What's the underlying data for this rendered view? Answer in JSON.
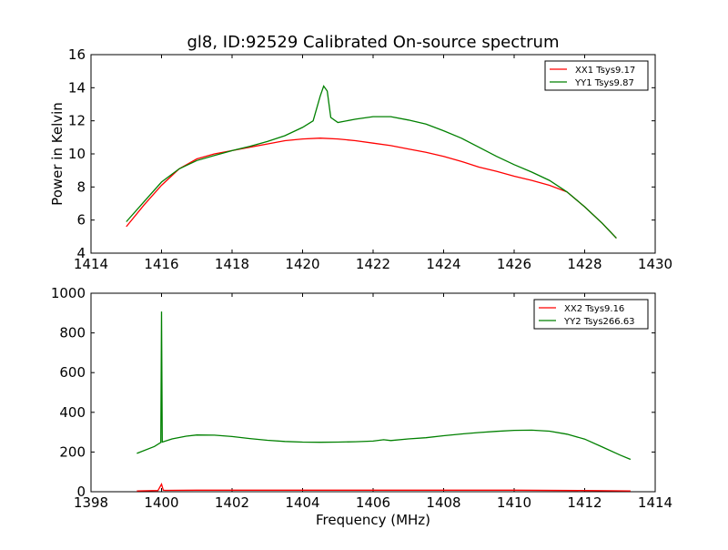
{
  "chart_data": [
    {
      "type": "line",
      "title": "gl8, ID:92529 Calibrated On-source spectrum",
      "xlabel": "",
      "ylabel": "Power in Kelvin",
      "xlim": [
        1414,
        1430
      ],
      "ylim": [
        4,
        16
      ],
      "xticks": [
        "1414",
        "1416",
        "1418",
        "1420",
        "1422",
        "1424",
        "1426",
        "1428",
        "1430"
      ],
      "yticks": [
        "4",
        "6",
        "8",
        "10",
        "12",
        "14",
        "16"
      ],
      "legend_position": "top-right",
      "series": [
        {
          "name": "XX1 Tsys9.17",
          "color": "#ff0000",
          "x": [
            1415.0,
            1415.5,
            1416.0,
            1416.5,
            1417.0,
            1417.5,
            1418.0,
            1418.5,
            1419.0,
            1419.5,
            1420.0,
            1420.5,
            1421.0,
            1421.5,
            1422.0,
            1422.5,
            1423.0,
            1423.5,
            1424.0,
            1424.5,
            1425.0,
            1425.5,
            1426.0,
            1426.5,
            1427.0,
            1427.5,
            1428.0,
            1428.5,
            1428.9
          ],
          "y": [
            5.6,
            6.9,
            8.1,
            9.1,
            9.7,
            10.0,
            10.2,
            10.4,
            10.6,
            10.8,
            10.9,
            10.95,
            10.9,
            10.8,
            10.65,
            10.5,
            10.3,
            10.1,
            9.85,
            9.55,
            9.2,
            8.95,
            8.65,
            8.4,
            8.1,
            7.7,
            6.8,
            5.8,
            4.9
          ]
        },
        {
          "name": "YY1 Tsys9.87",
          "color": "#008000",
          "x": [
            1415.0,
            1415.5,
            1416.0,
            1416.5,
            1417.0,
            1417.5,
            1418.0,
            1418.5,
            1419.0,
            1419.5,
            1420.0,
            1420.3,
            1420.5,
            1420.6,
            1420.7,
            1420.8,
            1421.0,
            1421.5,
            1422.0,
            1422.5,
            1423.0,
            1423.5,
            1424.0,
            1424.5,
            1425.0,
            1425.5,
            1426.0,
            1426.5,
            1427.0,
            1427.5,
            1428.0,
            1428.5,
            1428.9
          ],
          "y": [
            5.9,
            7.1,
            8.3,
            9.1,
            9.6,
            9.9,
            10.2,
            10.45,
            10.75,
            11.1,
            11.6,
            12.0,
            13.5,
            14.1,
            13.8,
            12.2,
            11.9,
            12.1,
            12.25,
            12.25,
            12.05,
            11.8,
            11.4,
            10.95,
            10.4,
            9.85,
            9.35,
            8.9,
            8.4,
            7.7,
            6.8,
            5.8,
            4.9
          ]
        }
      ]
    },
    {
      "type": "line",
      "title": "",
      "xlabel": "Frequency (MHz)",
      "ylabel": "",
      "xlim": [
        1398,
        1414
      ],
      "ylim": [
        0,
        1000
      ],
      "xticks": [
        "1398",
        "1400",
        "1402",
        "1404",
        "1406",
        "1408",
        "1410",
        "1412",
        "1414"
      ],
      "yticks": [
        "0",
        "200",
        "400",
        "600",
        "800",
        "1000"
      ],
      "legend_position": "top-right",
      "series": [
        {
          "name": "XX2 Tsys9.16",
          "color": "#ff0000",
          "x": [
            1399.3,
            1399.9,
            1400.0,
            1400.05,
            1400.1,
            1401.0,
            1402.0,
            1404.0,
            1406.0,
            1408.0,
            1410.0,
            1412.0,
            1413.3
          ],
          "y": [
            4,
            6,
            38,
            8,
            7,
            8,
            8,
            8,
            8,
            8,
            8,
            6,
            4
          ]
        },
        {
          "name": "YY2 Tsys266.63",
          "color": "#008000",
          "x": [
            1399.3,
            1399.8,
            1399.98,
            1400.0,
            1400.02,
            1400.3,
            1400.7,
            1401.0,
            1401.5,
            1402.0,
            1402.5,
            1403.0,
            1403.5,
            1404.0,
            1404.5,
            1405.0,
            1405.5,
            1406.0,
            1406.3,
            1406.5,
            1407.0,
            1407.5,
            1408.0,
            1408.5,
            1409.0,
            1409.5,
            1410.0,
            1410.5,
            1411.0,
            1411.5,
            1412.0,
            1412.5,
            1413.0,
            1413.3
          ],
          "y": [
            193,
            228,
            248,
            908,
            250,
            266,
            280,
            286,
            285,
            278,
            268,
            259,
            253,
            250,
            249,
            250,
            252,
            255,
            262,
            258,
            266,
            272,
            282,
            291,
            298,
            304,
            309,
            310,
            305,
            290,
            265,
            225,
            185,
            163
          ]
        }
      ]
    }
  ]
}
